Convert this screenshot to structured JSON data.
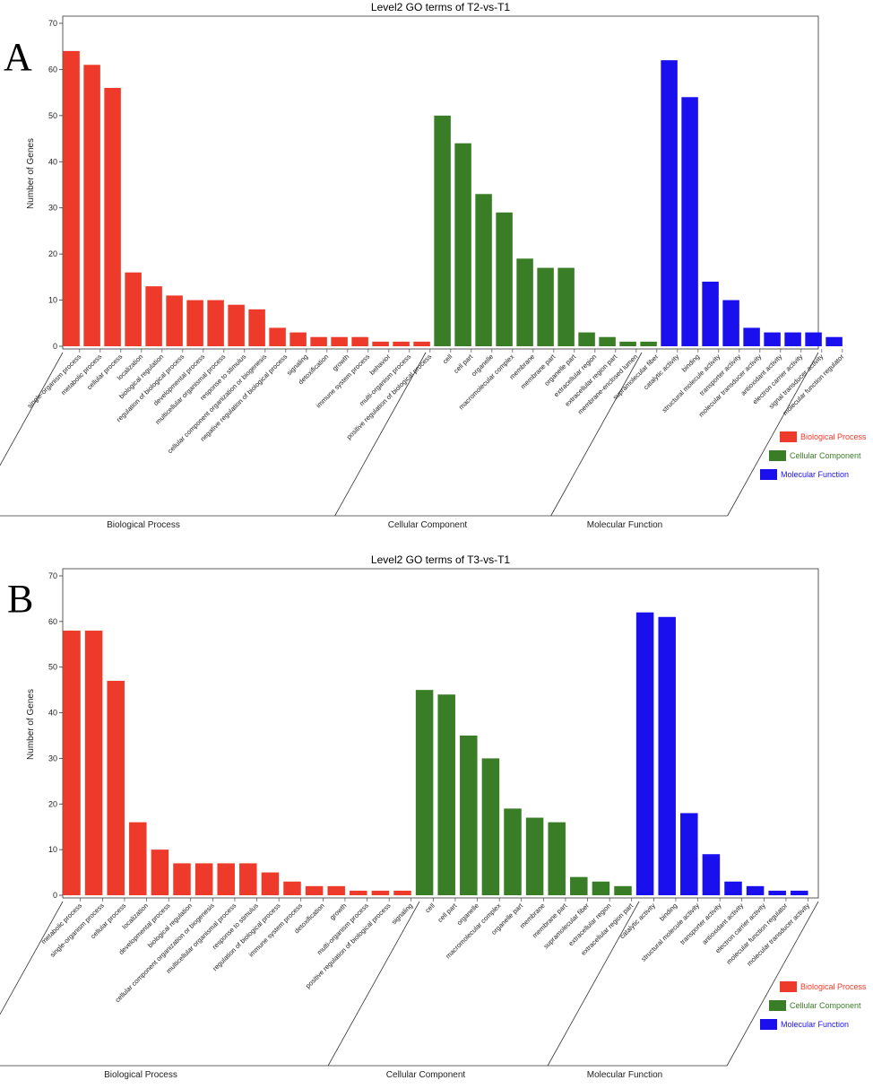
{
  "colors": {
    "biological_process": "#ee3a2a",
    "cellular_component": "#3a7d27",
    "molecular_function": "#1a10ee"
  },
  "chart_data": [
    {
      "type": "bar",
      "panel_letter": "A",
      "title": "Level2 GO terms of T2-vs-T1",
      "ylabel": "Number of Genes",
      "ylim": [
        0,
        70
      ],
      "yticks": [
        "0",
        "10",
        "20",
        "30",
        "40",
        "50",
        "60",
        "70"
      ],
      "legend": [
        "Biological Process",
        "Cellular Component",
        "Molecular Function"
      ],
      "group_labels": [
        "Biological Process",
        "Cellular Component",
        "Molecular Function"
      ],
      "groups": [
        {
          "name": "Biological Process",
          "color_key": "biological_process",
          "categories": [
            "single-organism process",
            "metabolic process",
            "cellular process",
            "localization",
            "biological regulation",
            "regulation of biological process",
            "developmental process",
            "multicellular organismal process",
            "response to stimulus",
            "cellular component organization or biogenesis",
            "negative regulation of biological process",
            "signaling",
            "detoxification",
            "growth",
            "immune system process",
            "behavior",
            "multi-organism process",
            "positive regulation of biological process"
          ],
          "values": [
            64,
            61,
            56,
            16,
            13,
            11,
            10,
            10,
            9,
            8,
            4,
            3,
            2,
            2,
            2,
            1,
            1,
            1
          ]
        },
        {
          "name": "Cellular Component",
          "color_key": "cellular_component",
          "categories": [
            "cell",
            "cell part",
            "organelle",
            "macromolecular complex",
            "membrane",
            "membrane part",
            "organelle part",
            "extracellular region",
            "extracellular region part",
            "membrane-enclosed lumen",
            "supramolecular fiber"
          ],
          "values": [
            50,
            44,
            33,
            29,
            19,
            17,
            17,
            3,
            2,
            1,
            1
          ]
        },
        {
          "name": "Molecular Function",
          "color_key": "molecular_function",
          "categories": [
            "catalytic activity",
            "binding",
            "structural molecule activity",
            "transporter activity",
            "molecular transducer activity",
            "antioxidant activity",
            "electron carrier activity",
            "signal transducer activity",
            "molecular function regulator"
          ],
          "values": [
            62,
            54,
            14,
            10,
            4,
            3,
            3,
            3,
            2
          ]
        }
      ]
    },
    {
      "type": "bar",
      "panel_letter": "B",
      "title": "Level2 GO terms of T3-vs-T1",
      "ylabel": "Number of Genes",
      "ylim": [
        0,
        70
      ],
      "yticks": [
        "0",
        "10",
        "20",
        "30",
        "40",
        "50",
        "60",
        "70"
      ],
      "legend": [
        "Biological Process",
        "Cellular Component",
        "Molecular Function"
      ],
      "group_labels": [
        "Biological Process",
        "Cellular Component",
        "Molecular Function"
      ],
      "groups": [
        {
          "name": "Biological Process",
          "color_key": "biological_process",
          "categories": [
            "metabolic process",
            "single-organism process",
            "cellular process",
            "localization",
            "developmental process",
            "biological regulation",
            "cellular component organization or biogenesis",
            "multicellular organismal process",
            "response to stimulus",
            "regulation of biological process",
            "immune system process",
            "detoxification",
            "growth",
            "multi-organism process",
            "positive regulation of biological process",
            "signaling"
          ],
          "values": [
            58,
            58,
            47,
            16,
            10,
            7,
            7,
            7,
            7,
            5,
            3,
            2,
            2,
            1,
            1,
            1
          ]
        },
        {
          "name": "Cellular Component",
          "color_key": "cellular_component",
          "categories": [
            "cell",
            "cell part",
            "organelle",
            "macromolecular complex",
            "organelle part",
            "membrane",
            "membrane part",
            "supramolecular fiber",
            "extracellular region",
            "extracellular region part"
          ],
          "values": [
            45,
            44,
            35,
            30,
            19,
            17,
            16,
            4,
            3,
            2
          ]
        },
        {
          "name": "Molecular Function",
          "color_key": "molecular_function",
          "categories": [
            "catalytic activity",
            "binding",
            "structural molecule activity",
            "transporter activity",
            "antioxidant activity",
            "electron carrier activity",
            "molecular function regulator",
            "molecular transducer activity"
          ],
          "values": [
            62,
            61,
            18,
            9,
            3,
            2,
            1,
            1
          ]
        }
      ]
    }
  ]
}
